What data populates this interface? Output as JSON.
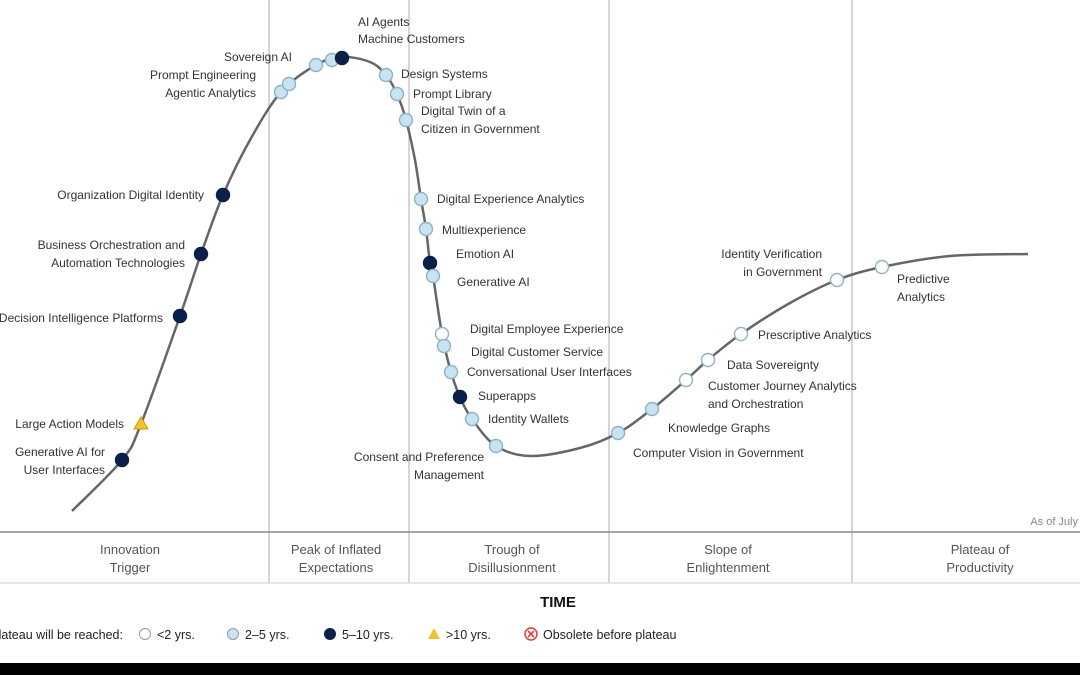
{
  "chart_data": {
    "type": "hype-cycle",
    "xlabel": "TIME",
    "as_of": "As of July",
    "phases": [
      {
        "name": [
          "Innovation",
          "Trigger"
        ]
      },
      {
        "name": [
          "Peak of Inflated",
          "Expectations"
        ]
      },
      {
        "name": [
          "Trough of",
          "Disillusionment"
        ]
      },
      {
        "name": [
          "Slope of",
          "Enlightenment"
        ]
      },
      {
        "name": [
          "Plateau of",
          "Productivity"
        ]
      }
    ],
    "legend": {
      "title": "Plateau will be reached:",
      "entries": [
        {
          "key": "lt2",
          "label": "<2 yrs.",
          "color": "#ffffff",
          "shape": "circle"
        },
        {
          "key": "2to5",
          "label": "2–5 yrs.",
          "color": "#c6e4f2",
          "shape": "circle"
        },
        {
          "key": "5to10",
          "label": "5–10 yrs.",
          "color": "#0b2048",
          "shape": "circle"
        },
        {
          "key": "gt10",
          "label": ">10 yrs.",
          "color": "#f2c230",
          "shape": "triangle"
        },
        {
          "key": "obsolete",
          "label": "Obsolete before plateau",
          "color": "#e03b3b",
          "shape": "x-circle"
        }
      ]
    },
    "items": [
      {
        "name": [
          "Generative AI for",
          "User Interfaces"
        ],
        "plateau": "5to10",
        "phase": "Innovation Trigger"
      },
      {
        "name": [
          "Large Action Models"
        ],
        "plateau": "gt10",
        "phase": "Innovation Trigger"
      },
      {
        "name": [
          "Decision Intelligence Platforms"
        ],
        "plateau": "5to10",
        "phase": "Innovation Trigger"
      },
      {
        "name": [
          "Business Orchestration and",
          "Automation Technologies"
        ],
        "plateau": "5to10",
        "phase": "Innovation Trigger"
      },
      {
        "name": [
          "Organization Digital Identity"
        ],
        "plateau": "5to10",
        "phase": "Innovation Trigger"
      },
      {
        "name": [
          "Agentic Analytics"
        ],
        "plateau": "2to5",
        "phase": "Innovation Trigger"
      },
      {
        "name": [
          "Prompt Engineering"
        ],
        "plateau": "2to5",
        "phase": "Peak of Inflated Expectations"
      },
      {
        "name": [
          "Sovereign AI"
        ],
        "plateau": "2to5",
        "phase": "Peak of Inflated Expectations"
      },
      {
        "name": [
          "AI Agents"
        ],
        "plateau": "2to5",
        "phase": "Peak of Inflated Expectations"
      },
      {
        "name": [
          "Machine Customers"
        ],
        "plateau": "5to10",
        "phase": "Peak of Inflated Expectations"
      },
      {
        "name": [
          "Design Systems"
        ],
        "plateau": "2to5",
        "phase": "Peak of Inflated Expectations"
      },
      {
        "name": [
          "Prompt Library"
        ],
        "plateau": "2to5",
        "phase": "Peak of Inflated Expectations"
      },
      {
        "name": [
          "Digital Twin of a",
          "Citizen in Government"
        ],
        "plateau": "2to5",
        "phase": "Peak of Inflated Expectations"
      },
      {
        "name": [
          "Digital Experience Analytics"
        ],
        "plateau": "2to5",
        "phase": "Trough of Disillusionment"
      },
      {
        "name": [
          "Multiexperience"
        ],
        "plateau": "2to5",
        "phase": "Trough of Disillusionment"
      },
      {
        "name": [
          "Emotion AI"
        ],
        "plateau": "5to10",
        "phase": "Trough of Disillusionment"
      },
      {
        "name": [
          "Generative AI"
        ],
        "plateau": "2to5",
        "phase": "Trough of Disillusionment"
      },
      {
        "name": [
          "Digital Employee Experience"
        ],
        "plateau": "lt2",
        "phase": "Trough of Disillusionment"
      },
      {
        "name": [
          "Digital Customer Service"
        ],
        "plateau": "2to5",
        "phase": "Trough of Disillusionment"
      },
      {
        "name": [
          "Conversational User Interfaces"
        ],
        "plateau": "2to5",
        "phase": "Trough of Disillusionment"
      },
      {
        "name": [
          "Superapps"
        ],
        "plateau": "5to10",
        "phase": "Trough of Disillusionment"
      },
      {
        "name": [
          "Identity Wallets"
        ],
        "plateau": "2to5",
        "phase": "Trough of Disillusionment"
      },
      {
        "name": [
          "Consent and Preference",
          "Management"
        ],
        "plateau": "2to5",
        "phase": "Trough of Disillusionment"
      },
      {
        "name": [
          "Computer Vision in Government"
        ],
        "plateau": "2to5",
        "phase": "Slope of Enlightenment"
      },
      {
        "name": [
          "Knowledge Graphs"
        ],
        "plateau": "2to5",
        "phase": "Slope of Enlightenment"
      },
      {
        "name": [
          "Customer Journey Analytics",
          "and Orchestration"
        ],
        "plateau": "lt2",
        "phase": "Slope of Enlightenment"
      },
      {
        "name": [
          "Data Sovereignty"
        ],
        "plateau": "lt2",
        "phase": "Slope of Enlightenment"
      },
      {
        "name": [
          "Prescriptive Analytics"
        ],
        "plateau": "lt2",
        "phase": "Slope of Enlightenment"
      },
      {
        "name": [
          "Identity Verification",
          "in Government"
        ],
        "plateau": "lt2",
        "phase": "Slope of Enlightenment"
      },
      {
        "name": [
          "Predictive",
          "Analytics"
        ],
        "plateau": "lt2",
        "phase": "Plateau of Productivity"
      }
    ]
  }
}
